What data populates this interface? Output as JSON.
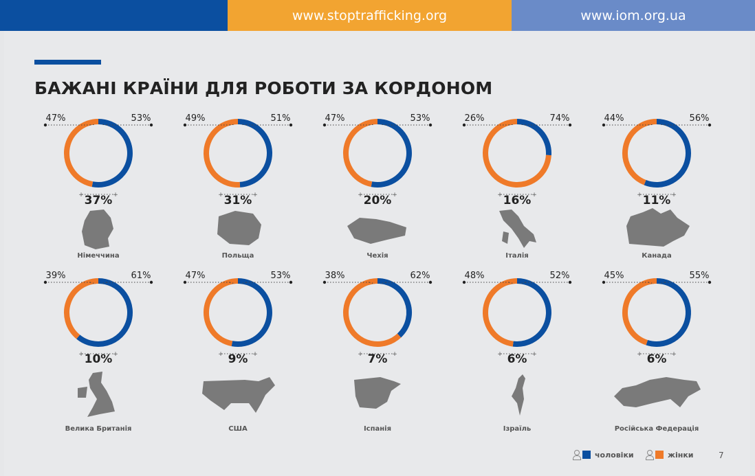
{
  "header": {
    "url_left": "www.stoptrafficking.org",
    "url_right": "www.iom.org.ua"
  },
  "page": {
    "title": "БАЖАНІ КРАЇНИ ДЛЯ РОБОТИ ЗА КОРДОНОМ",
    "number": "7"
  },
  "colors": {
    "men": "#0b4fa0",
    "women": "#ef7a29"
  },
  "legend": {
    "men_label": "чоловіки",
    "women_label": "жінки",
    "men_icon": "man-icon",
    "women_icon": "woman-icon"
  },
  "chart_data": {
    "type": "donut-grid",
    "title": "БАЖАНІ КРАЇНИ ДЛЯ РОБОТИ ЗА КОРДОНОМ",
    "series_labels": [
      "чоловіки",
      "жінки"
    ],
    "countries": [
      {
        "name": "Німеччина",
        "share": 37,
        "women": 47,
        "men": 53,
        "icon": "germany-map-icon"
      },
      {
        "name": "Польща",
        "share": 31,
        "men": 49,
        "women": 51,
        "icon": "poland-map-icon"
      },
      {
        "name": "Чехія",
        "share": 20,
        "women": 47,
        "men": 53,
        "icon": "czechia-map-icon"
      },
      {
        "name": "Італія",
        "share": 16,
        "men": 26,
        "women": 74,
        "icon": "italy-map-icon"
      },
      {
        "name": "Канада",
        "share": 11,
        "women": 44,
        "men": 56,
        "icon": "canada-map-icon"
      },
      {
        "name": "Велика Британія",
        "share": 10,
        "women": 39,
        "men": 61,
        "icon": "uk-map-icon"
      },
      {
        "name": "США",
        "share": 9,
        "women": 47,
        "men": 53,
        "icon": "usa-map-icon"
      },
      {
        "name": "Іспанія",
        "share": 7,
        "men": 38,
        "women": 62,
        "icon": "spain-map-icon"
      },
      {
        "name": "Ізраїль",
        "share": 6,
        "women": 48,
        "men": 52,
        "icon": "israel-map-icon"
      },
      {
        "name": "Російська Федерація",
        "share": 6,
        "women": 45,
        "men": 55,
        "icon": "russia-map-icon"
      }
    ]
  }
}
